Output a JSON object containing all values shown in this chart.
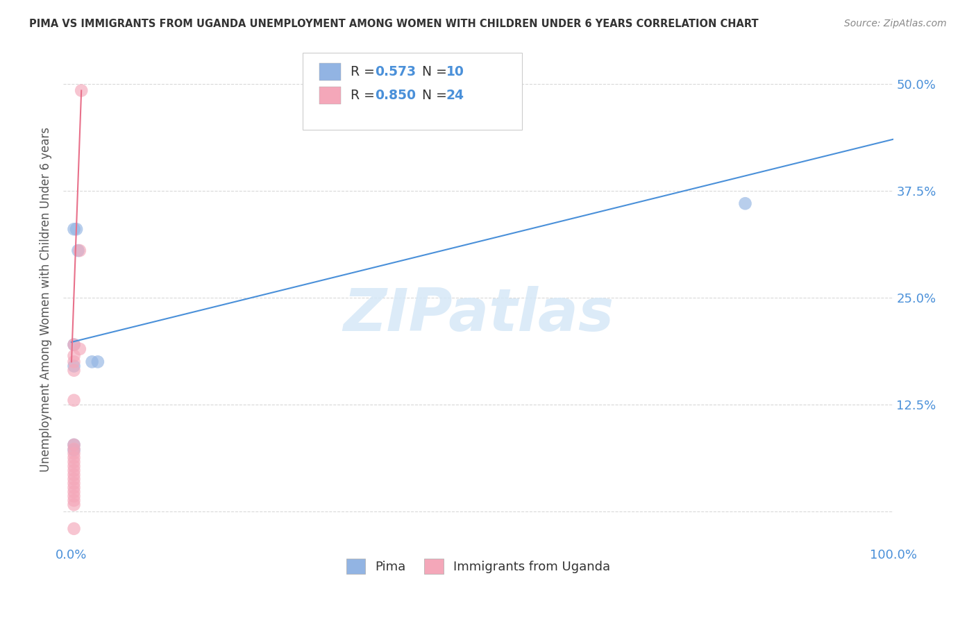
{
  "title": "PIMA VS IMMIGRANTS FROM UGANDA UNEMPLOYMENT AMONG WOMEN WITH CHILDREN UNDER 6 YEARS CORRELATION CHART",
  "source": "Source: ZipAtlas.com",
  "ylabel": "Unemployment Among Women with Children Under 6 years",
  "background_color": "#ffffff",
  "watermark": "ZIPatlas",
  "xlim": [
    -0.01,
    1.0
  ],
  "ylim": [
    -0.04,
    0.535
  ],
  "ytick_positions": [
    0.0,
    0.125,
    0.25,
    0.375,
    0.5
  ],
  "yticklabels_right": [
    "",
    "12.5%",
    "25.0%",
    "37.5%",
    "50.0%"
  ],
  "xtick_positions": [
    0.0,
    0.2,
    0.4,
    0.6,
    0.8,
    1.0
  ],
  "xticklabels": [
    "0.0%",
    "",
    "",
    "",
    "",
    "100.0%"
  ],
  "legend_pima_R": "0.573",
  "legend_pima_N": "10",
  "legend_uganda_R": "0.850",
  "legend_uganda_N": "24",
  "pima_color": "#92b4e3",
  "uganda_color": "#f4a7b9",
  "pima_line_color": "#4a90d9",
  "uganda_line_color": "#e8708a",
  "pima_scatter": [
    [
      0.003,
      0.33
    ],
    [
      0.006,
      0.33
    ],
    [
      0.008,
      0.305
    ],
    [
      0.003,
      0.195
    ],
    [
      0.003,
      0.17
    ],
    [
      0.025,
      0.175
    ],
    [
      0.032,
      0.175
    ],
    [
      0.003,
      0.078
    ],
    [
      0.003,
      0.072
    ],
    [
      0.82,
      0.36
    ]
  ],
  "uganda_scatter": [
    [
      0.012,
      0.492
    ],
    [
      0.01,
      0.305
    ],
    [
      0.01,
      0.19
    ],
    [
      0.003,
      0.195
    ],
    [
      0.003,
      0.182
    ],
    [
      0.003,
      0.175
    ],
    [
      0.003,
      0.165
    ],
    [
      0.003,
      0.13
    ],
    [
      0.003,
      0.078
    ],
    [
      0.003,
      0.073
    ],
    [
      0.003,
      0.068
    ],
    [
      0.003,
      0.063
    ],
    [
      0.003,
      0.058
    ],
    [
      0.003,
      0.053
    ],
    [
      0.003,
      0.048
    ],
    [
      0.003,
      0.043
    ],
    [
      0.003,
      0.038
    ],
    [
      0.003,
      0.033
    ],
    [
      0.003,
      0.028
    ],
    [
      0.003,
      0.023
    ],
    [
      0.003,
      0.018
    ],
    [
      0.003,
      0.013
    ],
    [
      0.003,
      0.008
    ],
    [
      0.003,
      -0.02
    ]
  ],
  "pima_trend_x": [
    0.0,
    1.0
  ],
  "pima_trend_y": [
    0.198,
    0.435
  ],
  "uganda_trend_x": [
    0.0,
    0.012
  ],
  "uganda_trend_y": [
    0.175,
    0.492
  ],
  "bottom_legend_labels": [
    "Pima",
    "Immigrants from Uganda"
  ],
  "grid_color": "#d9d9d9",
  "grid_style": "--",
  "tick_color": "#4a90d9",
  "label_color": "#555555",
  "title_color": "#333333",
  "source_color": "#888888"
}
